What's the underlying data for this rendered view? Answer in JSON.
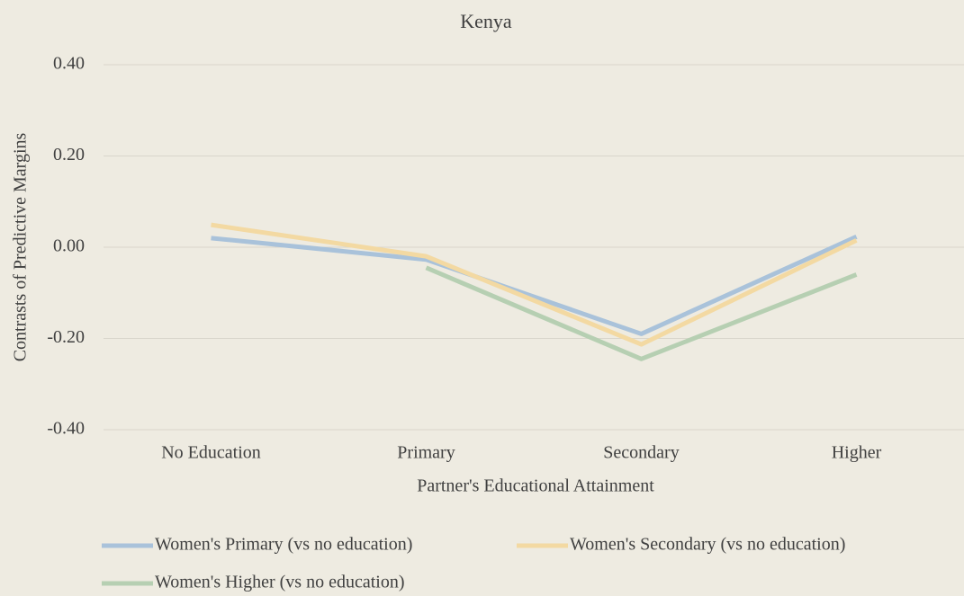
{
  "chart_data": {
    "type": "line",
    "title": "Kenya",
    "x_label": "Partner's Educational Attainment",
    "y_label": "Contrasts of Predictive Margins",
    "categories": [
      "No Education",
      "Primary",
      "Secondary",
      "Higher"
    ],
    "series": [
      {
        "name": "Women's Primary (vs no education)",
        "color": "#a9c2da",
        "values": [
          0.02,
          -0.027,
          -0.19,
          0.023
        ]
      },
      {
        "name": "Women's Secondary (vs no education)",
        "color": "#f3d9a2",
        "values": [
          0.049,
          -0.02,
          -0.213,
          0.015
        ]
      },
      {
        "name": "Women's Higher (vs no education)",
        "color": "#b6cfb2",
        "values": [
          null,
          -0.045,
          -0.245,
          -0.06
        ]
      }
    ],
    "ylim": [
      -0.4,
      0.4
    ],
    "yticks": [
      {
        "value": -0.4,
        "label": "-0.40"
      },
      {
        "value": -0.2,
        "label": "-0.20"
      },
      {
        "value": 0,
        "label": "0.00"
      },
      {
        "value": 0.2,
        "label": "0.20"
      },
      {
        "value": 0.4,
        "label": "0.40"
      }
    ],
    "grid": true,
    "legend": "bottom"
  }
}
